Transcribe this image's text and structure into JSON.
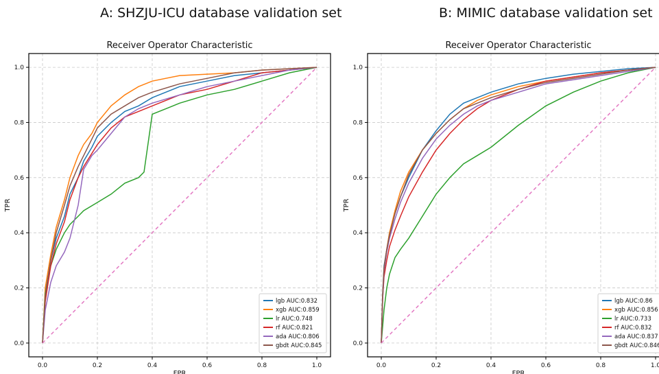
{
  "headings": {
    "panel_a": "A: SHZJU-ICU database validation set",
    "panel_b": "B: MIMIC database validation set"
  },
  "chart_data": [
    {
      "type": "line",
      "title": "Receiver Operator Characteristic",
      "xlabel": "FPR",
      "ylabel": "TPR",
      "xlim": [
        -0.05,
        1.05
      ],
      "ylim": [
        -0.05,
        1.05
      ],
      "xticks": [
        "0.0",
        "0.2",
        "0.4",
        "0.6",
        "0.8",
        "1.0"
      ],
      "yticks": [
        "0.0",
        "0.2",
        "0.4",
        "0.6",
        "0.8",
        "1.0"
      ],
      "grid": true,
      "legend_position": "lower-right",
      "series": [
        {
          "name": "lgb AUC:0.832",
          "color": "#1f77b4",
          "x": [
            0,
            0.01,
            0.03,
            0.05,
            0.08,
            0.1,
            0.13,
            0.15,
            0.18,
            0.2,
            0.25,
            0.3,
            0.35,
            0.4,
            0.5,
            0.6,
            0.7,
            0.8,
            0.9,
            1.0
          ],
          "y": [
            0,
            0.18,
            0.3,
            0.38,
            0.46,
            0.54,
            0.6,
            0.66,
            0.71,
            0.75,
            0.8,
            0.84,
            0.86,
            0.89,
            0.93,
            0.95,
            0.97,
            0.98,
            0.99,
            1.0
          ]
        },
        {
          "name": "xgb AUC:0.859",
          "color": "#ff7f0e",
          "x": [
            0,
            0.01,
            0.03,
            0.05,
            0.08,
            0.1,
            0.13,
            0.15,
            0.18,
            0.2,
            0.25,
            0.3,
            0.35,
            0.4,
            0.5,
            0.6,
            0.7,
            0.8,
            0.9,
            1.0
          ],
          "y": [
            0,
            0.2,
            0.32,
            0.42,
            0.52,
            0.6,
            0.68,
            0.72,
            0.76,
            0.8,
            0.86,
            0.9,
            0.93,
            0.95,
            0.97,
            0.975,
            0.98,
            0.99,
            0.995,
            1.0
          ]
        },
        {
          "name": "lr AUC:0.748",
          "color": "#2ca02c",
          "x": [
            0,
            0.01,
            0.03,
            0.05,
            0.08,
            0.1,
            0.13,
            0.15,
            0.2,
            0.25,
            0.3,
            0.35,
            0.37,
            0.4,
            0.45,
            0.5,
            0.6,
            0.7,
            0.8,
            0.9,
            1.0
          ],
          "y": [
            0,
            0.18,
            0.28,
            0.34,
            0.4,
            0.43,
            0.46,
            0.48,
            0.51,
            0.54,
            0.58,
            0.6,
            0.62,
            0.83,
            0.85,
            0.87,
            0.9,
            0.92,
            0.95,
            0.98,
            1.0
          ]
        },
        {
          "name": "rf AUC:0.821",
          "color": "#d62728",
          "x": [
            0,
            0.01,
            0.03,
            0.05,
            0.08,
            0.1,
            0.13,
            0.15,
            0.2,
            0.25,
            0.3,
            0.35,
            0.4,
            0.45,
            0.5,
            0.6,
            0.7,
            0.8,
            0.9,
            1.0
          ],
          "y": [
            0,
            0.15,
            0.28,
            0.36,
            0.44,
            0.52,
            0.6,
            0.64,
            0.72,
            0.78,
            0.82,
            0.84,
            0.86,
            0.88,
            0.9,
            0.92,
            0.95,
            0.98,
            0.99,
            1.0
          ]
        },
        {
          "name": "ada AUC:0.806",
          "color": "#9467bd",
          "x": [
            0,
            0.01,
            0.03,
            0.05,
            0.08,
            0.1,
            0.13,
            0.15,
            0.18,
            0.2,
            0.25,
            0.3,
            0.35,
            0.4,
            0.5,
            0.6,
            0.7,
            0.8,
            0.9,
            1.0
          ],
          "y": [
            0,
            0.12,
            0.22,
            0.28,
            0.33,
            0.38,
            0.5,
            0.63,
            0.68,
            0.7,
            0.76,
            0.82,
            0.85,
            0.87,
            0.9,
            0.93,
            0.95,
            0.97,
            0.99,
            1.0
          ]
        },
        {
          "name": "gbdt AUC:0.845",
          "color": "#8c564b",
          "x": [
            0,
            0.01,
            0.03,
            0.05,
            0.08,
            0.1,
            0.13,
            0.15,
            0.18,
            0.2,
            0.25,
            0.3,
            0.35,
            0.4,
            0.5,
            0.6,
            0.7,
            0.8,
            0.9,
            1.0
          ],
          "y": [
            0,
            0.17,
            0.3,
            0.4,
            0.5,
            0.57,
            0.64,
            0.68,
            0.74,
            0.78,
            0.83,
            0.86,
            0.89,
            0.91,
            0.94,
            0.96,
            0.98,
            0.99,
            0.995,
            1.0
          ]
        },
        {
          "name": "",
          "color": "#e377c2",
          "dashed": true,
          "x": [
            0,
            1
          ],
          "y": [
            0,
            1
          ]
        }
      ]
    },
    {
      "type": "line",
      "title": "Receiver Operator Characteristic",
      "xlabel": "FPR",
      "ylabel": "TPR",
      "xlim": [
        -0.05,
        1.05
      ],
      "ylim": [
        -0.05,
        1.05
      ],
      "xticks": [
        "0.0",
        "0.2",
        "0.4",
        "0.6",
        "0.8",
        "1.0"
      ],
      "yticks": [
        "0.0",
        "0.2",
        "0.4",
        "0.6",
        "0.8",
        "1.0"
      ],
      "grid": true,
      "legend_position": "lower-right",
      "series": [
        {
          "name": "lgb AUC:0.86",
          "color": "#1f77b4",
          "x": [
            0,
            0.005,
            0.01,
            0.02,
            0.03,
            0.05,
            0.07,
            0.1,
            0.15,
            0.2,
            0.25,
            0.3,
            0.35,
            0.4,
            0.5,
            0.6,
            0.7,
            0.8,
            0.9,
            1.0
          ],
          "y": [
            0,
            0.18,
            0.28,
            0.34,
            0.4,
            0.47,
            0.53,
            0.6,
            0.7,
            0.77,
            0.83,
            0.87,
            0.89,
            0.91,
            0.94,
            0.96,
            0.975,
            0.985,
            0.995,
            1.0
          ]
        },
        {
          "name": "xgb AUC:0.856",
          "color": "#ff7f0e",
          "x": [
            0,
            0.005,
            0.01,
            0.02,
            0.03,
            0.05,
            0.07,
            0.1,
            0.15,
            0.2,
            0.25,
            0.3,
            0.35,
            0.4,
            0.5,
            0.6,
            0.7,
            0.8,
            0.9,
            1.0
          ],
          "y": [
            0,
            0.17,
            0.27,
            0.34,
            0.4,
            0.48,
            0.55,
            0.62,
            0.7,
            0.76,
            0.81,
            0.85,
            0.88,
            0.9,
            0.93,
            0.95,
            0.965,
            0.98,
            0.99,
            1.0
          ]
        },
        {
          "name": "lr AUC:0.733",
          "color": "#2ca02c",
          "x": [
            0,
            0.005,
            0.01,
            0.02,
            0.03,
            0.05,
            0.07,
            0.1,
            0.15,
            0.2,
            0.25,
            0.3,
            0.35,
            0.4,
            0.5,
            0.6,
            0.7,
            0.8,
            0.9,
            1.0
          ],
          "y": [
            0,
            0.06,
            0.12,
            0.2,
            0.25,
            0.31,
            0.34,
            0.38,
            0.46,
            0.54,
            0.6,
            0.65,
            0.68,
            0.71,
            0.79,
            0.86,
            0.91,
            0.95,
            0.98,
            1.0
          ]
        },
        {
          "name": "rf AUC:0.832",
          "color": "#d62728",
          "x": [
            0,
            0.005,
            0.01,
            0.02,
            0.03,
            0.05,
            0.07,
            0.1,
            0.15,
            0.2,
            0.25,
            0.3,
            0.35,
            0.4,
            0.5,
            0.6,
            0.7,
            0.8,
            0.9,
            1.0
          ],
          "y": [
            0,
            0.16,
            0.24,
            0.3,
            0.35,
            0.41,
            0.46,
            0.53,
            0.62,
            0.7,
            0.76,
            0.81,
            0.85,
            0.88,
            0.92,
            0.95,
            0.965,
            0.98,
            0.99,
            1.0
          ]
        },
        {
          "name": "ada AUC:0.837",
          "color": "#9467bd",
          "x": [
            0,
            0.005,
            0.01,
            0.02,
            0.03,
            0.05,
            0.07,
            0.1,
            0.15,
            0.2,
            0.25,
            0.3,
            0.35,
            0.4,
            0.5,
            0.6,
            0.7,
            0.8,
            0.9,
            1.0
          ],
          "y": [
            0,
            0.16,
            0.26,
            0.33,
            0.38,
            0.45,
            0.51,
            0.58,
            0.67,
            0.74,
            0.79,
            0.83,
            0.86,
            0.88,
            0.91,
            0.94,
            0.955,
            0.97,
            0.985,
            1.0
          ]
        },
        {
          "name": "gbdt AUC:0.846",
          "color": "#8c564b",
          "x": [
            0,
            0.005,
            0.01,
            0.02,
            0.03,
            0.05,
            0.07,
            0.1,
            0.15,
            0.2,
            0.25,
            0.3,
            0.35,
            0.4,
            0.5,
            0.6,
            0.7,
            0.8,
            0.9,
            1.0
          ],
          "y": [
            0,
            0.17,
            0.27,
            0.34,
            0.39,
            0.47,
            0.53,
            0.61,
            0.7,
            0.76,
            0.81,
            0.85,
            0.87,
            0.89,
            0.92,
            0.945,
            0.96,
            0.975,
            0.99,
            1.0
          ]
        },
        {
          "name": "",
          "color": "#e377c2",
          "dashed": true,
          "x": [
            0,
            1
          ],
          "y": [
            0,
            1
          ]
        }
      ]
    }
  ]
}
